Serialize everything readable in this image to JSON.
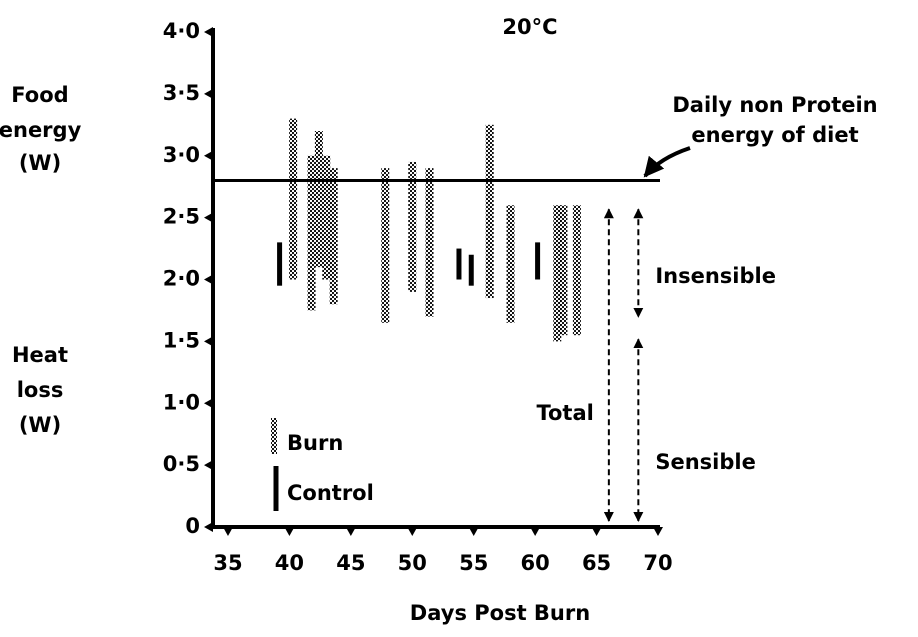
{
  "chart_data": {
    "type": "range",
    "title": "20°C",
    "x_label": "Days Post Burn",
    "y_label_top": [
      "Food",
      "energy",
      "(W)"
    ],
    "y_label_bottom": [
      "Heat",
      "loss",
      "(W)"
    ],
    "xlim": [
      34,
      70
    ],
    "ylim": [
      0,
      4.0
    ],
    "xticks": [
      35,
      40,
      45,
      50,
      55,
      60,
      65,
      70
    ],
    "yticks": [
      0,
      {
        "value": 0.5,
        "label": "0·5"
      },
      {
        "value": 1.0,
        "label": "1·0"
      },
      {
        "value": 1.5,
        "label": "1·5"
      },
      {
        "value": 2.0,
        "label": "2·0"
      },
      {
        "value": 2.5,
        "label": "2·5"
      },
      {
        "value": 3.0,
        "label": "3·0"
      },
      {
        "value": 3.5,
        "label": "3·5"
      },
      {
        "value": 4.0,
        "label": "4·0"
      }
    ],
    "series": [
      {
        "name": "Burn",
        "style": "dotted",
        "color": "#000000",
        "x": [
          40.3,
          41.8,
          42.4,
          43.0,
          43.6,
          47.8,
          50.0,
          51.4,
          56.3,
          58.0,
          61.8,
          62.3,
          63.4
        ],
        "low": [
          2.0,
          1.75,
          2.1,
          2.0,
          1.8,
          1.65,
          1.9,
          1.7,
          1.85,
          1.65,
          1.5,
          1.55,
          1.55
        ],
        "high": [
          3.3,
          3.0,
          3.2,
          3.0,
          2.9,
          2.9,
          2.95,
          2.9,
          3.25,
          2.6,
          2.6,
          2.6,
          2.6
        ]
      },
      {
        "name": "Control",
        "style": "solid",
        "color": "#000000",
        "x": [
          39.2,
          53.8,
          54.8,
          60.2
        ],
        "low": [
          1.95,
          2.0,
          1.95,
          2.0
        ],
        "high": [
          2.3,
          2.25,
          2.2,
          2.3
        ]
      }
    ],
    "reference_line": {
      "value": 2.8,
      "label": [
        "Daily non Protein",
        "energy of diet"
      ]
    },
    "arrows": [
      {
        "label": "Total",
        "x": 66.0,
        "from": 0,
        "to": 2.6
      },
      {
        "label": "Insensible",
        "x": 68.4,
        "from": 1.65,
        "to": 2.6
      },
      {
        "label": "Sensible",
        "x": 68.4,
        "from": 0,
        "to": 1.55
      }
    ]
  }
}
